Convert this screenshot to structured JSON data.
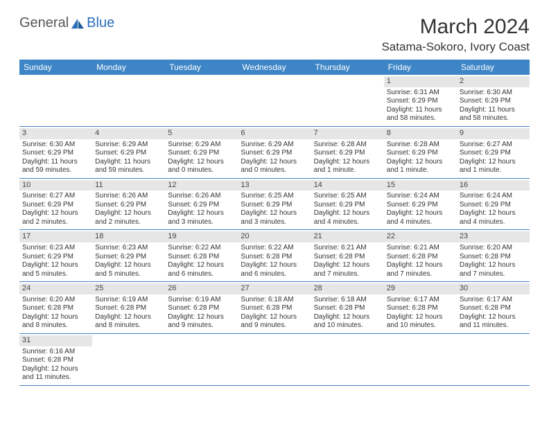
{
  "logo": {
    "text1": "General",
    "text2": "Blue"
  },
  "title": "March 2024",
  "location": "Satama-Sokoro, Ivory Coast",
  "colors": {
    "header_bg": "#3d85c6",
    "header_text": "#ffffff",
    "daynum_bg": "#e6e6e6",
    "border": "#3d85c6",
    "logo_accent": "#2a6db8"
  },
  "weekdays": [
    "Sunday",
    "Monday",
    "Tuesday",
    "Wednesday",
    "Thursday",
    "Friday",
    "Saturday"
  ],
  "weeks": [
    [
      null,
      null,
      null,
      null,
      null,
      {
        "n": "1",
        "sr": "Sunrise: 6:31 AM",
        "ss": "Sunset: 6:29 PM",
        "dl": "Daylight: 11 hours and 58 minutes."
      },
      {
        "n": "2",
        "sr": "Sunrise: 6:30 AM",
        "ss": "Sunset: 6:29 PM",
        "dl": "Daylight: 11 hours and 58 minutes."
      }
    ],
    [
      {
        "n": "3",
        "sr": "Sunrise: 6:30 AM",
        "ss": "Sunset: 6:29 PM",
        "dl": "Daylight: 11 hours and 59 minutes."
      },
      {
        "n": "4",
        "sr": "Sunrise: 6:29 AM",
        "ss": "Sunset: 6:29 PM",
        "dl": "Daylight: 11 hours and 59 minutes."
      },
      {
        "n": "5",
        "sr": "Sunrise: 6:29 AM",
        "ss": "Sunset: 6:29 PM",
        "dl": "Daylight: 12 hours and 0 minutes."
      },
      {
        "n": "6",
        "sr": "Sunrise: 6:29 AM",
        "ss": "Sunset: 6:29 PM",
        "dl": "Daylight: 12 hours and 0 minutes."
      },
      {
        "n": "7",
        "sr": "Sunrise: 6:28 AM",
        "ss": "Sunset: 6:29 PM",
        "dl": "Daylight: 12 hours and 1 minute."
      },
      {
        "n": "8",
        "sr": "Sunrise: 6:28 AM",
        "ss": "Sunset: 6:29 PM",
        "dl": "Daylight: 12 hours and 1 minute."
      },
      {
        "n": "9",
        "sr": "Sunrise: 6:27 AM",
        "ss": "Sunset: 6:29 PM",
        "dl": "Daylight: 12 hours and 1 minute."
      }
    ],
    [
      {
        "n": "10",
        "sr": "Sunrise: 6:27 AM",
        "ss": "Sunset: 6:29 PM",
        "dl": "Daylight: 12 hours and 2 minutes."
      },
      {
        "n": "11",
        "sr": "Sunrise: 6:26 AM",
        "ss": "Sunset: 6:29 PM",
        "dl": "Daylight: 12 hours and 2 minutes."
      },
      {
        "n": "12",
        "sr": "Sunrise: 6:26 AM",
        "ss": "Sunset: 6:29 PM",
        "dl": "Daylight: 12 hours and 3 minutes."
      },
      {
        "n": "13",
        "sr": "Sunrise: 6:25 AM",
        "ss": "Sunset: 6:29 PM",
        "dl": "Daylight: 12 hours and 3 minutes."
      },
      {
        "n": "14",
        "sr": "Sunrise: 6:25 AM",
        "ss": "Sunset: 6:29 PM",
        "dl": "Daylight: 12 hours and 4 minutes."
      },
      {
        "n": "15",
        "sr": "Sunrise: 6:24 AM",
        "ss": "Sunset: 6:29 PM",
        "dl": "Daylight: 12 hours and 4 minutes."
      },
      {
        "n": "16",
        "sr": "Sunrise: 6:24 AM",
        "ss": "Sunset: 6:29 PM",
        "dl": "Daylight: 12 hours and 4 minutes."
      }
    ],
    [
      {
        "n": "17",
        "sr": "Sunrise: 6:23 AM",
        "ss": "Sunset: 6:29 PM",
        "dl": "Daylight: 12 hours and 5 minutes."
      },
      {
        "n": "18",
        "sr": "Sunrise: 6:23 AM",
        "ss": "Sunset: 6:29 PM",
        "dl": "Daylight: 12 hours and 5 minutes."
      },
      {
        "n": "19",
        "sr": "Sunrise: 6:22 AM",
        "ss": "Sunset: 6:28 PM",
        "dl": "Daylight: 12 hours and 6 minutes."
      },
      {
        "n": "20",
        "sr": "Sunrise: 6:22 AM",
        "ss": "Sunset: 6:28 PM",
        "dl": "Daylight: 12 hours and 6 minutes."
      },
      {
        "n": "21",
        "sr": "Sunrise: 6:21 AM",
        "ss": "Sunset: 6:28 PM",
        "dl": "Daylight: 12 hours and 7 minutes."
      },
      {
        "n": "22",
        "sr": "Sunrise: 6:21 AM",
        "ss": "Sunset: 6:28 PM",
        "dl": "Daylight: 12 hours and 7 minutes."
      },
      {
        "n": "23",
        "sr": "Sunrise: 6:20 AM",
        "ss": "Sunset: 6:28 PM",
        "dl": "Daylight: 12 hours and 7 minutes."
      }
    ],
    [
      {
        "n": "24",
        "sr": "Sunrise: 6:20 AM",
        "ss": "Sunset: 6:28 PM",
        "dl": "Daylight: 12 hours and 8 minutes."
      },
      {
        "n": "25",
        "sr": "Sunrise: 6:19 AM",
        "ss": "Sunset: 6:28 PM",
        "dl": "Daylight: 12 hours and 8 minutes."
      },
      {
        "n": "26",
        "sr": "Sunrise: 6:19 AM",
        "ss": "Sunset: 6:28 PM",
        "dl": "Daylight: 12 hours and 9 minutes."
      },
      {
        "n": "27",
        "sr": "Sunrise: 6:18 AM",
        "ss": "Sunset: 6:28 PM",
        "dl": "Daylight: 12 hours and 9 minutes."
      },
      {
        "n": "28",
        "sr": "Sunrise: 6:18 AM",
        "ss": "Sunset: 6:28 PM",
        "dl": "Daylight: 12 hours and 10 minutes."
      },
      {
        "n": "29",
        "sr": "Sunrise: 6:17 AM",
        "ss": "Sunset: 6:28 PM",
        "dl": "Daylight: 12 hours and 10 minutes."
      },
      {
        "n": "30",
        "sr": "Sunrise: 6:17 AM",
        "ss": "Sunset: 6:28 PM",
        "dl": "Daylight: 12 hours and 11 minutes."
      }
    ],
    [
      {
        "n": "31",
        "sr": "Sunrise: 6:16 AM",
        "ss": "Sunset: 6:28 PM",
        "dl": "Daylight: 12 hours and 11 minutes."
      },
      null,
      null,
      null,
      null,
      null,
      null
    ]
  ]
}
